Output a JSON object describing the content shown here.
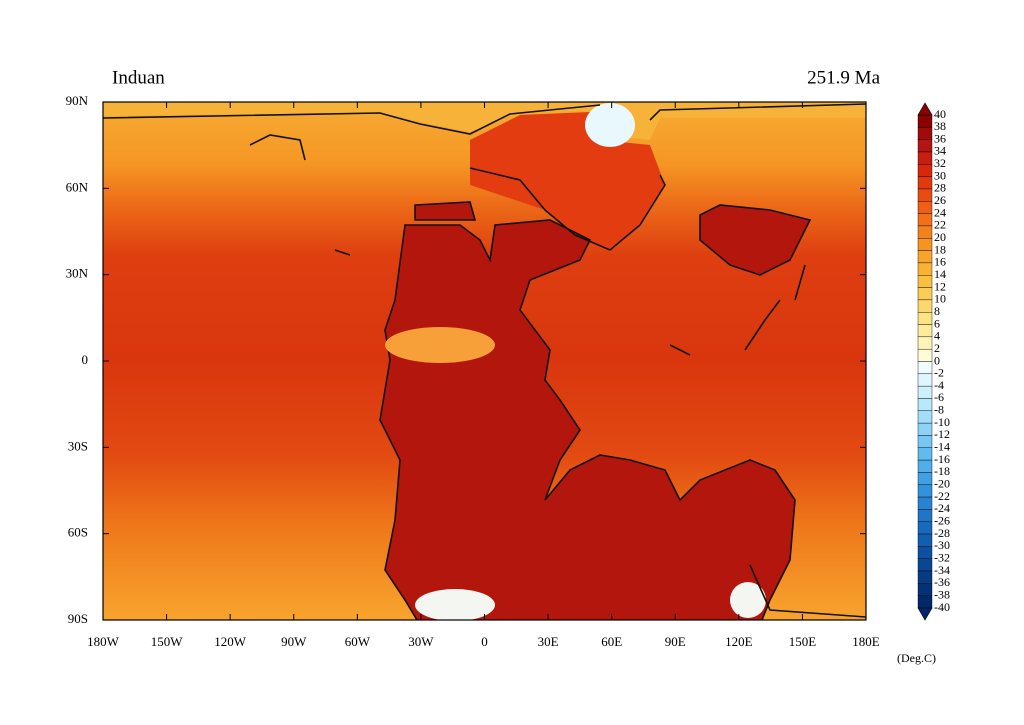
{
  "header": {
    "title": "Induan",
    "age": "251.9 Ma"
  },
  "x_axis": {
    "labels": [
      "180W",
      "150W",
      "120W",
      "90W",
      "60W",
      "30W",
      "0",
      "30E",
      "60E",
      "90E",
      "120E",
      "150E",
      "180E"
    ]
  },
  "y_axis": {
    "labels": [
      "90N",
      "60N",
      "30N",
      "0",
      "30S",
      "60S",
      "90S"
    ]
  },
  "colorbar": {
    "levels": [
      40,
      38,
      36,
      34,
      32,
      30,
      28,
      26,
      24,
      22,
      20,
      18,
      16,
      14,
      12,
      10,
      8,
      6,
      4,
      2,
      0,
      -2,
      -4,
      -6,
      -8,
      -10,
      -12,
      -14,
      -16,
      -18,
      -20,
      -22,
      -24,
      -26,
      -28,
      -30,
      -32,
      -34,
      -36,
      -38,
      -40
    ],
    "colors": [
      "#8b0000",
      "#a00a0a",
      "#b41414",
      "#c81e10",
      "#d8280c",
      "#e23a0c",
      "#ea4c10",
      "#ef5e14",
      "#f27018",
      "#f4821c",
      "#f69420",
      "#f8a428",
      "#f9b232",
      "#fac040",
      "#fbcd55",
      "#fcd86c",
      "#fde384",
      "#feec9c",
      "#fff4b8",
      "#fffbd6",
      "#f2fbff",
      "#e0f6fe",
      "#cdf0fd",
      "#b8e8fb",
      "#a2defa",
      "#8cd3f7",
      "#76c7f3",
      "#62bbef",
      "#50aeea",
      "#40a0e4",
      "#3392dc",
      "#2884d2",
      "#1f76c8",
      "#186abc",
      "#125eb0",
      "#0d52a2",
      "#094794",
      "#063c86",
      "#043278",
      "#02286a"
    ],
    "unit": "(Deg.C)"
  }
}
